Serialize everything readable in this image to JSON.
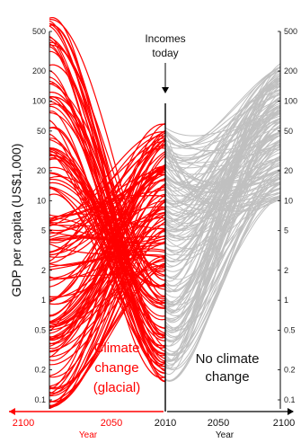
{
  "chart_data": {
    "type": "line",
    "title": "",
    "ylabel": "GDP per capita (US$1,000)",
    "yscale": "log",
    "ylim": [
      0.1,
      500
    ],
    "yticks": [
      500,
      200,
      100,
      50,
      20,
      10,
      5,
      2,
      1,
      0.5,
      0.2,
      0.1
    ],
    "ytick_labels": [
      "500",
      "200",
      "100",
      "50",
      "20",
      "10",
      "5",
      "2",
      "1",
      "0.5",
      "0.2",
      "0.1"
    ],
    "grid": false,
    "left_panel": {
      "x_ticks": [
        "2100",
        "2050",
        "2010"
      ],
      "xlabel": "Year",
      "label": "Climate\nchange\n(glacial)",
      "color": "#ff0000",
      "description_of_trend": "GDP per capita declining from 2010 to 2100 for most countries",
      "start_range_2010": [
        0.15,
        60
      ],
      "end_range_2100": [
        0.05,
        800
      ]
    },
    "right_panel": {
      "x_ticks": [
        "2010",
        "2050",
        "2100"
      ],
      "xlabel": "Year",
      "label": "No climate\nchange",
      "color": "#c0c0c0",
      "description_of_trend": "GDP per capita rising from 2010 to 2100",
      "start_range_2010": [
        0.15,
        60
      ],
      "end_range_2100": [
        10,
        250
      ]
    },
    "annotation": "Incomes\ntoday"
  },
  "text": {
    "annotation_line1": "Incomes",
    "annotation_line2": "today",
    "left_label_1": "Climate",
    "left_label_2": "change",
    "left_label_3": "(glacial)",
    "right_label_1": "No climate",
    "right_label_2": "change",
    "x_left_2100": "2100",
    "x_left_2050": "2050",
    "x_mid_2010": "2010",
    "x_right_2050": "2050",
    "x_right_2100": "2100",
    "xlabel_left": "Year",
    "xlabel_right": "Year"
  },
  "colors": {
    "climate_change": "#ff0000",
    "no_climate_change": "#c0c0c0",
    "axis": "#000000"
  }
}
